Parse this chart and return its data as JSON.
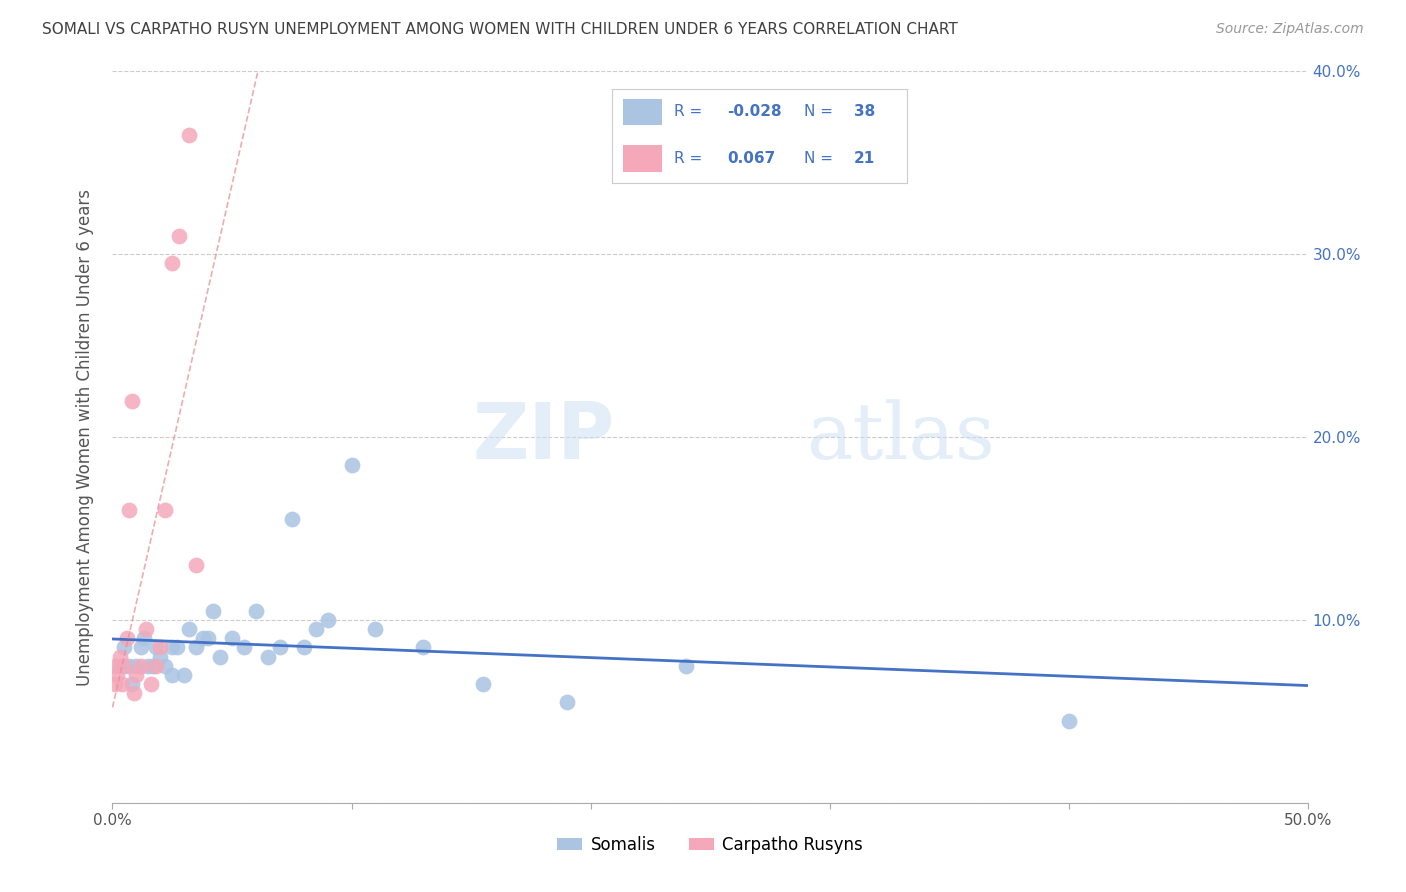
{
  "title": "SOMALI VS CARPATHO RUSYN UNEMPLOYMENT AMONG WOMEN WITH CHILDREN UNDER 6 YEARS CORRELATION CHART",
  "source": "Source: ZipAtlas.com",
  "ylabel": "Unemployment Among Women with Children Under 6 years",
  "xlabel": "",
  "watermark_zip": "ZIP",
  "watermark_atlas": "atlas",
  "xlim": [
    0.0,
    0.5
  ],
  "ylim": [
    0.0,
    0.4
  ],
  "xticks": [
    0.0,
    0.1,
    0.2,
    0.3,
    0.4,
    0.5
  ],
  "yticks": [
    0.0,
    0.1,
    0.2,
    0.3,
    0.4
  ],
  "xtick_labels": [
    "0.0%",
    "",
    "",
    "",
    "",
    "50.0%"
  ],
  "ytick_labels_right": [
    "",
    "10.0%",
    "20.0%",
    "30.0%",
    "40.0%"
  ],
  "somali_R": -0.028,
  "somali_N": 38,
  "carpatho_R": 0.067,
  "carpatho_N": 21,
  "somali_color": "#aac4e2",
  "carpatho_color": "#f4a8ba",
  "somali_line_color": "#4472c4",
  "carpatho_line_color": "#e8909a",
  "somali_x": [
    0.003,
    0.005,
    0.007,
    0.008,
    0.01,
    0.012,
    0.013,
    0.015,
    0.017,
    0.018,
    0.02,
    0.022,
    0.025,
    0.025,
    0.027,
    0.03,
    0.032,
    0.035,
    0.038,
    0.04,
    0.042,
    0.045,
    0.05,
    0.055,
    0.06,
    0.065,
    0.07,
    0.075,
    0.08,
    0.085,
    0.09,
    0.1,
    0.11,
    0.13,
    0.155,
    0.19,
    0.24,
    0.4
  ],
  "somali_y": [
    0.075,
    0.085,
    0.075,
    0.065,
    0.075,
    0.085,
    0.09,
    0.075,
    0.075,
    0.085,
    0.08,
    0.075,
    0.07,
    0.085,
    0.085,
    0.07,
    0.095,
    0.085,
    0.09,
    0.09,
    0.105,
    0.08,
    0.09,
    0.085,
    0.105,
    0.08,
    0.085,
    0.155,
    0.085,
    0.095,
    0.1,
    0.185,
    0.095,
    0.085,
    0.065,
    0.055,
    0.075,
    0.045
  ],
  "carpatho_x": [
    0.001,
    0.001,
    0.002,
    0.003,
    0.004,
    0.005,
    0.006,
    0.007,
    0.008,
    0.009,
    0.01,
    0.012,
    0.014,
    0.016,
    0.018,
    0.02,
    0.022,
    0.025,
    0.028,
    0.032,
    0.035
  ],
  "carpatho_y": [
    0.065,
    0.075,
    0.07,
    0.08,
    0.065,
    0.075,
    0.09,
    0.16,
    0.22,
    0.06,
    0.07,
    0.075,
    0.095,
    0.065,
    0.075,
    0.085,
    0.16,
    0.295,
    0.31,
    0.365,
    0.13
  ],
  "legend_somali_label": "Somalis",
  "legend_carpatho_label": "Carpatho Rusyns",
  "background_color": "#ffffff",
  "grid_color": "#cccccc",
  "legend_text_color": "#4472c4",
  "title_color": "#404040",
  "source_color": "#999999"
}
